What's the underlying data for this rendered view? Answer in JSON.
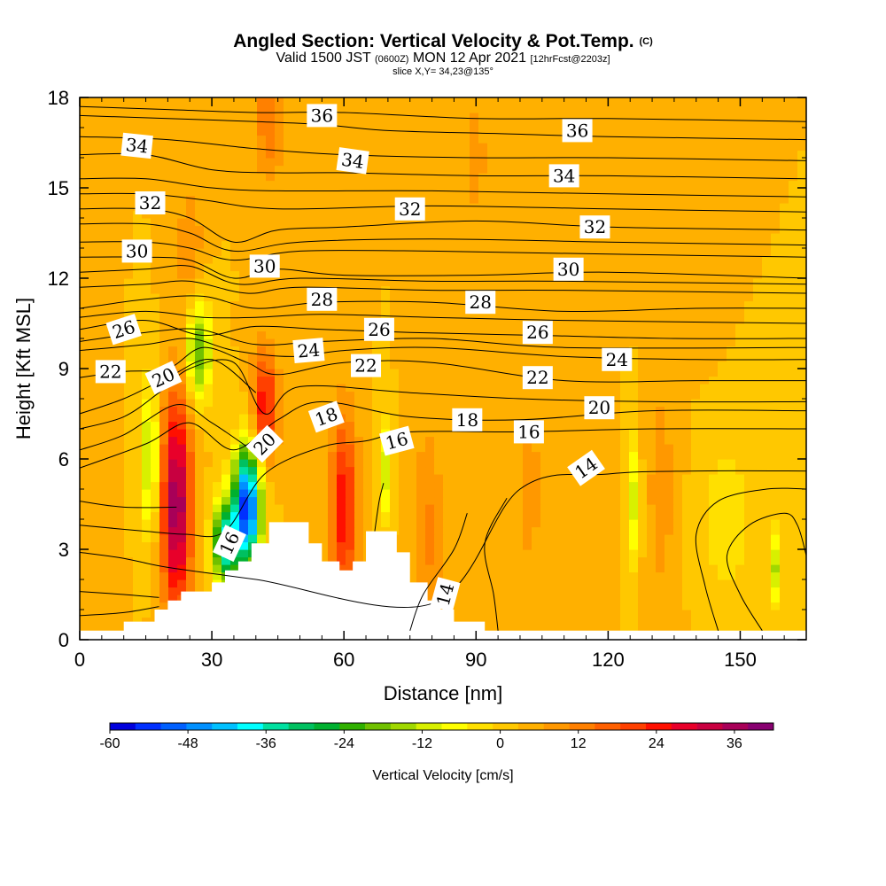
{
  "header": {
    "title": "Angled Section: Vertical Velocity & Pot.Temp.",
    "copyright": "(C)",
    "valid_main": "Valid 1500 JST",
    "valid_utc": "(0600Z)",
    "valid_date": "MON 12 Apr 2021",
    "forecast": "[12hrFcst@2203z]",
    "slice": "slice X,Y= 34,23@135°"
  },
  "chart_data": {
    "type": "heatmap",
    "xlabel": "Distance [nm]",
    "ylabel": "Height [Kft MSL]",
    "xlim": [
      0,
      165
    ],
    "ylim": [
      0,
      18
    ],
    "x_ticks": [
      0,
      30,
      60,
      90,
      120,
      150
    ],
    "y_ticks": [
      0,
      3,
      6,
      9,
      12,
      15,
      18
    ],
    "x_tick_labels": [
      "0",
      "30",
      "60",
      "90",
      "120",
      "150"
    ],
    "y_tick_labels": [
      "0",
      "3",
      "6",
      "9",
      "12",
      "15",
      "18"
    ],
    "colorbar": {
      "title": "Vertical Velocity [cm/s]",
      "tick_labels": [
        "-60",
        "-48",
        "-36",
        "-24",
        "-12",
        "0",
        "12",
        "24",
        "36"
      ],
      "tick_values": [
        -60,
        -48,
        -36,
        -24,
        -12,
        0,
        12,
        24,
        36
      ],
      "range": [
        -60,
        42
      ],
      "interval": 4,
      "colors": [
        "#0000dd",
        "#0030ff",
        "#0060ff",
        "#0090ff",
        "#00c0ff",
        "#00ffff",
        "#00e0a0",
        "#00c060",
        "#00b030",
        "#30b000",
        "#70c000",
        "#a0d800",
        "#d8f000",
        "#ffff00",
        "#ffe000",
        "#ffc800",
        "#ffb000",
        "#ff9800",
        "#ff8000",
        "#ff6000",
        "#ff4000",
        "#ff1000",
        "#e8002a",
        "#c80040",
        "#a80058",
        "#880070"
      ]
    },
    "background_value": 4,
    "velocity_features": [
      {
        "x": 22,
        "y": 4.5,
        "sx": 2.4,
        "sy": 2.6,
        "value": 40
      },
      {
        "x": 16,
        "y": 6.0,
        "sx": 1.2,
        "sy": 1.8,
        "value": -16
      },
      {
        "x": 27,
        "y": 9.6,
        "sx": 2.0,
        "sy": 1.2,
        "value": -20
      },
      {
        "x": 38,
        "y": 4.4,
        "sx": 2.2,
        "sy": 1.4,
        "value": -56
      },
      {
        "x": 33,
        "y": 3.2,
        "sx": 2.0,
        "sy": 1.0,
        "value": -36
      },
      {
        "x": 42,
        "y": 7.8,
        "sx": 2.0,
        "sy": 1.3,
        "value": 28
      },
      {
        "x": 43,
        "y": 17.5,
        "sx": 2.4,
        "sy": 1.6,
        "value": 16
      },
      {
        "x": 25,
        "y": 13.0,
        "sx": 2.0,
        "sy": 1.5,
        "value": 12
      },
      {
        "x": 60,
        "y": 4.4,
        "sx": 2.2,
        "sy": 2.2,
        "value": 28
      },
      {
        "x": 69,
        "y": 5.6,
        "sx": 0.9,
        "sy": 1.2,
        "value": -12
      },
      {
        "x": 79,
        "y": 3.5,
        "sx": 2.5,
        "sy": 2.5,
        "value": 13
      },
      {
        "x": 126,
        "y": 4.6,
        "sx": 0.9,
        "sy": 1.6,
        "value": -10
      },
      {
        "x": 147,
        "y": 4.0,
        "sx": 4.0,
        "sy": 2.0,
        "value": -3
      },
      {
        "x": 158,
        "y": 2.4,
        "sx": 0.8,
        "sy": 0.9,
        "value": -12
      },
      {
        "x": 132,
        "y": 5.0,
        "sx": 2.5,
        "sy": 3.0,
        "value": 10
      },
      {
        "x": 102,
        "y": 5.0,
        "sx": 3.0,
        "sy": 3.0,
        "value": 9
      },
      {
        "x": 90,
        "y": 16.0,
        "sx": 2.5,
        "sy": 2.5,
        "value": 9
      },
      {
        "x": 142,
        "y": 15.0,
        "sx": 3.0,
        "sy": 3.0,
        "value": 7
      }
    ],
    "terrain": [
      [
        0,
        0.3
      ],
      [
        10,
        0.3
      ],
      [
        10,
        0.6
      ],
      [
        17,
        0.6
      ],
      [
        17,
        1.0
      ],
      [
        20,
        1.0
      ],
      [
        20,
        1.3
      ],
      [
        23,
        1.3
      ],
      [
        23,
        1.6
      ],
      [
        30,
        1.6
      ],
      [
        30,
        1.9
      ],
      [
        33,
        1.9
      ],
      [
        33,
        2.3
      ],
      [
        36,
        2.3
      ],
      [
        36,
        2.6
      ],
      [
        39,
        2.6
      ],
      [
        39,
        3.2
      ],
      [
        43,
        3.2
      ],
      [
        43,
        3.9
      ],
      [
        52,
        3.9
      ],
      [
        52,
        3.2
      ],
      [
        55,
        3.2
      ],
      [
        55,
        2.6
      ],
      [
        59,
        2.6
      ],
      [
        59,
        2.3
      ],
      [
        62,
        2.3
      ],
      [
        62,
        2.6
      ],
      [
        65,
        2.6
      ],
      [
        65,
        3.6
      ],
      [
        72,
        3.6
      ],
      [
        72,
        2.9
      ],
      [
        75,
        2.9
      ],
      [
        75,
        1.9
      ],
      [
        79,
        1.9
      ],
      [
        79,
        1.3
      ],
      [
        82,
        1.3
      ],
      [
        82,
        1.0
      ],
      [
        85,
        1.0
      ],
      [
        85,
        0.6
      ],
      [
        92,
        0.6
      ],
      [
        92,
        0.3
      ],
      [
        165,
        0.3
      ]
    ],
    "theta_contours": [
      {
        "level": 14,
        "x": [
          0,
          10,
          20,
          40,
          80,
          100,
          120,
          140,
          165
        ],
        "y": [
          2.9,
          2.7,
          2.4,
          2.0,
          1.2,
          5.0,
          5.5,
          5.6,
          5.6
        ]
      },
      {
        "level": 16,
        "x": [
          0,
          15,
          24,
          33,
          42,
          55,
          65,
          75,
          100,
          130,
          165
        ],
        "y": [
          3.8,
          3.6,
          3.5,
          3.6,
          5.5,
          6.4,
          6.6,
          6.9,
          6.9,
          7.0,
          7.0
        ]
      },
      {
        "level": 18,
        "x": [
          0,
          15,
          25,
          35,
          45,
          55,
          75,
          100,
          130,
          165
        ],
        "y": [
          5.7,
          6.5,
          7.2,
          6.3,
          7.3,
          7.9,
          7.4,
          7.3,
          7.6,
          7.6
        ]
      },
      {
        "level": 20,
        "x": [
          0,
          10,
          18,
          25,
          35,
          42,
          50,
          75,
          100,
          130,
          165
        ],
        "y": [
          7.0,
          7.4,
          8.2,
          9.0,
          9.2,
          7.5,
          8.4,
          8.2,
          8.0,
          7.9,
          7.9
        ]
      },
      {
        "level": 22,
        "x": [
          0,
          10,
          20,
          28,
          38,
          45,
          60,
          80,
          110,
          140,
          165
        ],
        "y": [
          8.7,
          8.9,
          9.0,
          9.7,
          9.2,
          8.8,
          9.2,
          9.2,
          8.6,
          8.6,
          8.6
        ]
      },
      {
        "level": 24,
        "x": [
          0,
          15,
          25,
          35,
          48,
          60,
          80,
          110,
          140,
          165
        ],
        "y": [
          9.6,
          9.8,
          10.0,
          9.6,
          9.4,
          9.6,
          9.7,
          9.4,
          9.3,
          9.3
        ]
      },
      {
        "level": 26,
        "x": [
          0,
          15,
          28,
          40,
          55,
          75,
          105,
          135,
          165
        ],
        "y": [
          10.3,
          10.6,
          10.1,
          10.4,
          10.3,
          10.2,
          10.1,
          10.0,
          10.0
        ]
      },
      {
        "level": 28,
        "x": [
          0,
          15,
          28,
          40,
          55,
          80,
          110,
          140,
          165
        ],
        "y": [
          11.0,
          11.3,
          11.4,
          11.0,
          11.2,
          11.2,
          10.9,
          11.0,
          11.0
        ]
      },
      {
        "level": 30,
        "x": [
          0,
          15,
          25,
          35,
          45,
          60,
          90,
          120,
          165
        ],
        "y": [
          12.7,
          12.7,
          12.6,
          12.0,
          12.3,
          12.1,
          12.1,
          12.2,
          12.0
        ]
      },
      {
        "level": 32,
        "x": [
          0,
          15,
          25,
          35,
          45,
          60,
          90,
          120,
          165
        ],
        "y": [
          14.3,
          14.3,
          14.0,
          13.2,
          13.6,
          13.7,
          13.9,
          13.7,
          13.6
        ]
      },
      {
        "level": 34,
        "x": [
          0,
          15,
          30,
          45,
          60,
          90,
          120,
          165
        ],
        "y": [
          16.1,
          16.1,
          15.6,
          15.5,
          15.5,
          15.4,
          15.4,
          15.3
        ]
      },
      {
        "level": 36,
        "x": [
          0,
          20,
          40,
          55,
          70,
          95,
          120,
          165
        ],
        "y": [
          17.4,
          17.3,
          17.2,
          17.1,
          16.9,
          16.8,
          16.7,
          16.6
        ]
      }
    ],
    "extra_isentropes": [
      [
        [
          0,
          0.8
        ],
        [
          10,
          0.9
        ],
        [
          18,
          1.1
        ]
      ],
      [
        [
          0,
          1.6
        ],
        [
          10,
          1.5
        ],
        [
          18,
          1.4
        ]
      ],
      [
        [
          0,
          4.6
        ],
        [
          10,
          4.4
        ],
        [
          22,
          4.4
        ]
      ],
      [
        [
          0,
          6.3
        ],
        [
          10,
          6.8
        ],
        [
          22,
          7.8
        ],
        [
          30,
          7.2
        ],
        [
          40,
          6.2
        ]
      ],
      [
        [
          0,
          7.5
        ],
        [
          10,
          8.0
        ],
        [
          20,
          8.7
        ],
        [
          30,
          9.3
        ],
        [
          40,
          8.2
        ]
      ],
      [
        [
          0,
          9.9
        ],
        [
          15,
          10.2
        ],
        [
          27,
          10.3
        ],
        [
          40,
          9.8
        ],
        [
          55,
          9.9
        ],
        [
          80,
          10.0
        ],
        [
          110,
          9.7
        ],
        [
          165,
          9.7
        ]
      ],
      [
        [
          0,
          10.7
        ],
        [
          15,
          10.9
        ],
        [
          28,
          10.7
        ],
        [
          40,
          10.7
        ],
        [
          55,
          10.8
        ],
        [
          80,
          10.7
        ],
        [
          110,
          10.6
        ],
        [
          165,
          10.5
        ]
      ],
      [
        [
          0,
          11.7
        ],
        [
          15,
          11.8
        ],
        [
          25,
          11.9
        ],
        [
          38,
          11.5
        ],
        [
          50,
          11.7
        ],
        [
          80,
          11.6
        ],
        [
          110,
          11.6
        ],
        [
          165,
          11.5
        ]
      ],
      [
        [
          0,
          12.2
        ],
        [
          15,
          12.3
        ],
        [
          25,
          12.4
        ],
        [
          36,
          11.8
        ],
        [
          50,
          12.0
        ],
        [
          80,
          11.9
        ],
        [
          110,
          11.9
        ],
        [
          165,
          11.8
        ]
      ],
      [
        [
          0,
          13.2
        ],
        [
          15,
          13.2
        ],
        [
          25,
          13.0
        ],
        [
          35,
          12.6
        ],
        [
          50,
          12.9
        ],
        [
          80,
          12.9
        ],
        [
          120,
          12.8
        ],
        [
          165,
          12.7
        ]
      ],
      [
        [
          0,
          13.8
        ],
        [
          15,
          13.8
        ],
        [
          25,
          13.5
        ],
        [
          35,
          12.9
        ],
        [
          50,
          13.2
        ],
        [
          80,
          13.3
        ],
        [
          120,
          13.2
        ],
        [
          165,
          13.1
        ]
      ],
      [
        [
          0,
          14.8
        ],
        [
          15,
          14.8
        ],
        [
          28,
          14.6
        ],
        [
          45,
          14.3
        ],
        [
          80,
          14.4
        ],
        [
          120,
          14.3
        ],
        [
          165,
          14.2
        ]
      ],
      [
        [
          0,
          15.3
        ],
        [
          15,
          15.3
        ],
        [
          30,
          15.0
        ],
        [
          45,
          14.9
        ],
        [
          80,
          14.9
        ],
        [
          120,
          14.8
        ],
        [
          165,
          14.7
        ]
      ],
      [
        [
          0,
          16.7
        ],
        [
          20,
          16.6
        ],
        [
          40,
          16.3
        ],
        [
          60,
          16.1
        ],
        [
          90,
          16.0
        ],
        [
          120,
          16.0
        ],
        [
          165,
          15.9
        ]
      ],
      [
        [
          0,
          17.7
        ],
        [
          20,
          17.6
        ],
        [
          40,
          17.5
        ],
        [
          60,
          17.5
        ],
        [
          90,
          17.3
        ],
        [
          120,
          17.3
        ],
        [
          165,
          17.2
        ]
      ],
      [
        [
          75,
          0.3
        ],
        [
          78,
          1.5
        ],
        [
          85,
          3.0
        ],
        [
          88,
          4.2
        ]
      ],
      [
        [
          95,
          0.3
        ],
        [
          94,
          1.5
        ],
        [
          92,
          3.2
        ],
        [
          97,
          4.7
        ]
      ],
      [
        [
          155,
          0.3
        ],
        [
          150,
          1.5
        ],
        [
          147,
          2.8
        ],
        [
          152,
          3.8
        ],
        [
          160,
          4.2
        ],
        [
          163,
          3.8
        ],
        [
          165,
          2.8
        ]
      ],
      [
        [
          145,
          0.3
        ],
        [
          142,
          1.8
        ],
        [
          140,
          3.5
        ],
        [
          145,
          4.6
        ],
        [
          156,
          5.0
        ],
        [
          165,
          5.0
        ]
      ],
      [
        [
          67,
          3.6
        ],
        [
          68,
          4.6
        ],
        [
          69,
          5.2
        ]
      ]
    ],
    "contour_labels": [
      {
        "text": "36",
        "x": 55,
        "y": 17.4,
        "angle": 0
      },
      {
        "text": "36",
        "x": 113,
        "y": 16.9,
        "angle": 0
      },
      {
        "text": "34",
        "x": 13,
        "y": 16.4,
        "angle": 6
      },
      {
        "text": "34",
        "x": 62,
        "y": 15.9,
        "angle": 8
      },
      {
        "text": "34",
        "x": 110,
        "y": 15.4,
        "angle": 0
      },
      {
        "text": "32",
        "x": 16,
        "y": 14.5,
        "angle": 0
      },
      {
        "text": "32",
        "x": 75,
        "y": 14.3,
        "angle": 0
      },
      {
        "text": "32",
        "x": 117,
        "y": 13.7,
        "angle": 0
      },
      {
        "text": "30",
        "x": 13,
        "y": 12.9,
        "angle": 0
      },
      {
        "text": "30",
        "x": 42,
        "y": 12.4,
        "angle": 0
      },
      {
        "text": "30",
        "x": 111,
        "y": 12.3,
        "angle": 0
      },
      {
        "text": "28",
        "x": 55,
        "y": 11.3,
        "angle": 0
      },
      {
        "text": "28",
        "x": 91,
        "y": 11.2,
        "angle": 0
      },
      {
        "text": "26",
        "x": 10,
        "y": 10.3,
        "angle": -18
      },
      {
        "text": "26",
        "x": 68,
        "y": 10.3,
        "angle": 0
      },
      {
        "text": "26",
        "x": 104,
        "y": 10.2,
        "angle": 0
      },
      {
        "text": "24",
        "x": 52,
        "y": 9.6,
        "angle": -5
      },
      {
        "text": "24",
        "x": 122,
        "y": 9.3,
        "angle": 0
      },
      {
        "text": "22",
        "x": 7,
        "y": 8.9,
        "angle": 0
      },
      {
        "text": "22",
        "x": 65,
        "y": 9.1,
        "angle": 0
      },
      {
        "text": "22",
        "x": 104,
        "y": 8.7,
        "angle": 0
      },
      {
        "text": "20",
        "x": 19,
        "y": 8.7,
        "angle": -25
      },
      {
        "text": "20",
        "x": 42,
        "y": 6.5,
        "angle": -45
      },
      {
        "text": "20",
        "x": 118,
        "y": 7.7,
        "angle": 0
      },
      {
        "text": "18",
        "x": 56,
        "y": 7.4,
        "angle": -20
      },
      {
        "text": "18",
        "x": 88,
        "y": 7.3,
        "angle": 0
      },
      {
        "text": "18",
        "x": 0,
        "y": 0,
        "angle": 0,
        "hidden": true
      },
      {
        "text": "16",
        "x": 72,
        "y": 6.6,
        "angle": -15
      },
      {
        "text": "16",
        "x": 102,
        "y": 6.9,
        "angle": 0
      },
      {
        "text": "16",
        "x": 34,
        "y": 3.2,
        "angle": -65
      },
      {
        "text": "14",
        "x": 115,
        "y": 5.7,
        "angle": -35
      },
      {
        "text": "14",
        "x": 83,
        "y": 1.5,
        "angle": -75
      }
    ]
  }
}
